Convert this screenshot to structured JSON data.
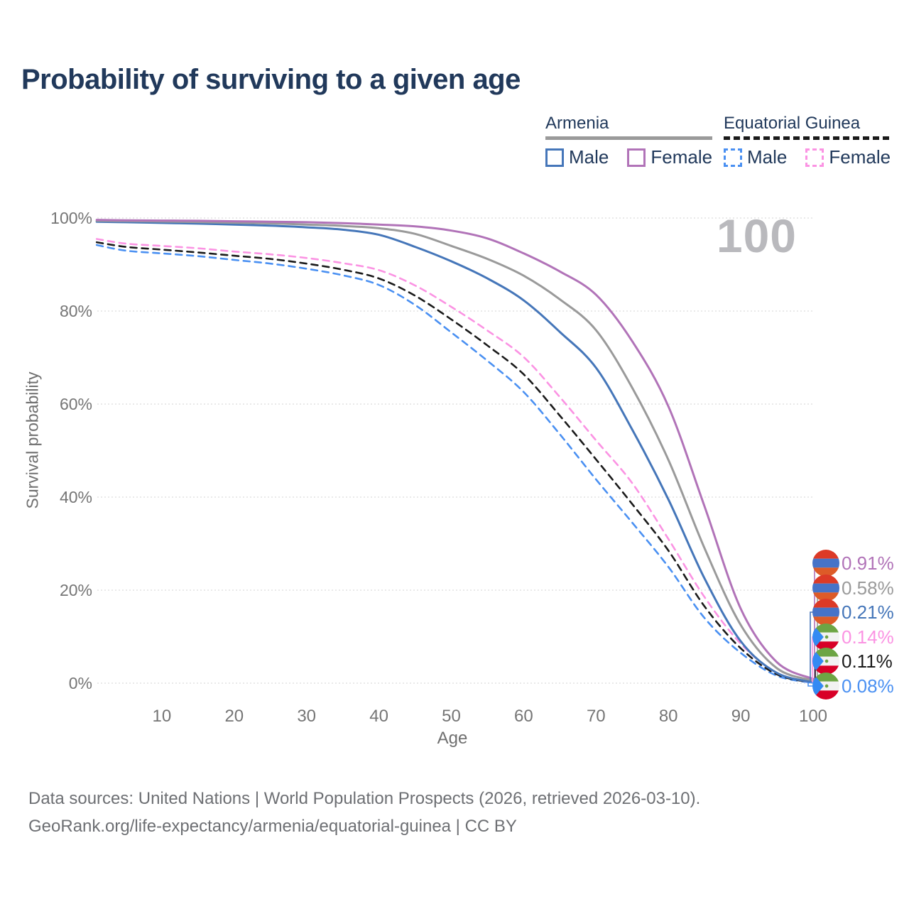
{
  "title": "Probability of surviving to a given age",
  "watermark": "100",
  "legend": {
    "groups": [
      {
        "title": "Armenia",
        "line_style": "solid",
        "underline_color": "#9a9a9a",
        "items": [
          {
            "label": "Male",
            "color": "#4576b9"
          },
          {
            "label": "Female",
            "color": "#b173b8"
          }
        ]
      },
      {
        "title": "Equatorial Guinea",
        "line_style": "dashed",
        "underline_color": "#1a1a1a",
        "items": [
          {
            "label": "Male",
            "color": "#4a90f2"
          },
          {
            "label": "Female",
            "color": "#fb93e3"
          }
        ]
      }
    ]
  },
  "chart_data": {
    "type": "line",
    "title": "Probability of surviving to a given age",
    "xlabel": "Age",
    "ylabel": "Survival probability",
    "xlim": [
      1,
      100
    ],
    "ylim": [
      0,
      100
    ],
    "grid": "horizontal-dotted",
    "legend_position": "top-right",
    "x_ticks": [
      10,
      20,
      30,
      40,
      50,
      60,
      70,
      80,
      90,
      100
    ],
    "y_ticks": [
      {
        "value": 0,
        "label": "0%"
      },
      {
        "value": 20,
        "label": "20%"
      },
      {
        "value": 40,
        "label": "40%"
      },
      {
        "value": 60,
        "label": "60%"
      },
      {
        "value": 80,
        "label": "80%"
      },
      {
        "value": 100,
        "label": "100%"
      }
    ],
    "ages": [
      1,
      5,
      10,
      15,
      20,
      25,
      30,
      35,
      40,
      45,
      50,
      55,
      60,
      65,
      70,
      75,
      80,
      85,
      90,
      95,
      100
    ],
    "series": [
      {
        "id": "armenia-female",
        "country": "Armenia",
        "sex": "Female",
        "color": "#b173b8",
        "dashed": false,
        "flag": "armenia",
        "end_label": "0.91%",
        "values": [
          99.6,
          99.5,
          99.45,
          99.4,
          99.3,
          99.2,
          99.1,
          98.9,
          98.6,
          98.2,
          97.3,
          95.6,
          92.4,
          88.5,
          83.5,
          73.5,
          59.5,
          38,
          16,
          4.5,
          0.91
        ]
      },
      {
        "id": "armenia-all",
        "country": "Armenia",
        "sex": "All",
        "color": "#9a9a9a",
        "dashed": false,
        "flag": "armenia",
        "end_label": "0.58%",
        "values": [
          99.4,
          99.35,
          99.25,
          99.15,
          99.0,
          98.85,
          98.6,
          98.3,
          97.8,
          96.6,
          94.0,
          91.2,
          87.6,
          82.5,
          75.9,
          63.5,
          48,
          29,
          12.5,
          3.2,
          0.58
        ]
      },
      {
        "id": "armenia-male",
        "country": "Armenia",
        "sex": "Male",
        "color": "#4576b9",
        "dashed": false,
        "flag": "armenia",
        "end_label": "0.21%",
        "values": [
          99.2,
          99.1,
          98.95,
          98.8,
          98.6,
          98.35,
          98.0,
          97.5,
          96.4,
          93.8,
          90.7,
          87.0,
          82.3,
          75.5,
          67.8,
          54.5,
          39.5,
          22.5,
          9,
          2.2,
          0.21
        ]
      },
      {
        "id": "equatorial-guinea-female",
        "country": "Equatorial Guinea",
        "sex": "Female",
        "color": "#fb93e3",
        "dashed": true,
        "flag": "equatorial_guinea",
        "end_label": "0.14%",
        "values": [
          95.5,
          94.5,
          94.0,
          93.5,
          92.8,
          92.2,
          91.4,
          90.3,
          88.8,
          85.5,
          80.9,
          75.8,
          70.1,
          61.5,
          52.2,
          43,
          31,
          18.5,
          8.5,
          2.2,
          0.14
        ]
      },
      {
        "id": "equatorial-guinea-all",
        "country": "Equatorial Guinea",
        "sex": "All",
        "color": "#1a1a1a",
        "dashed": true,
        "flag": "equatorial_guinea",
        "end_label": "0.11%",
        "values": [
          94.8,
          93.8,
          93.2,
          92.6,
          91.9,
          91.2,
          90.2,
          88.9,
          87.0,
          83.3,
          78.2,
          72.6,
          66.4,
          57.5,
          48.1,
          38.5,
          28.5,
          16.5,
          7.5,
          1.9,
          0.11
        ]
      },
      {
        "id": "equatorial-guinea-male",
        "country": "Equatorial Guinea",
        "sex": "Male",
        "color": "#4a90f2",
        "dashed": true,
        "flag": "equatorial_guinea",
        "end_label": "0.08%",
        "values": [
          94.2,
          93.0,
          92.4,
          91.8,
          91.0,
          90.2,
          89.1,
          87.7,
          85.6,
          81.3,
          75.4,
          69.3,
          62.6,
          53.5,
          43.8,
          34.5,
          25,
          14,
          6.5,
          1.6,
          0.08
        ]
      }
    ]
  },
  "flags": {
    "armenia": {
      "bands": [
        "#DC3A27",
        "#4673C8",
        "#DD5B28"
      ]
    },
    "equatorial_guinea": {
      "bands": [
        "#6DA544",
        "#F2F2F2",
        "#D80027"
      ],
      "triangle": "#338AF3",
      "star": "#6DA544"
    }
  },
  "colors": {
    "title_text": "#21395b",
    "axis_text": "#757575",
    "gridline": "#dcdcdc",
    "watermark": "#b9b9bd",
    "footer_text": "#6d6f73"
  },
  "footer": {
    "line1": "Data sources: United Nations | World Population Prospects (2026, retrieved 2026-03-10).",
    "line2": "GeoRank.org/life-expectancy/armenia/equatorial-guinea | CC BY"
  }
}
